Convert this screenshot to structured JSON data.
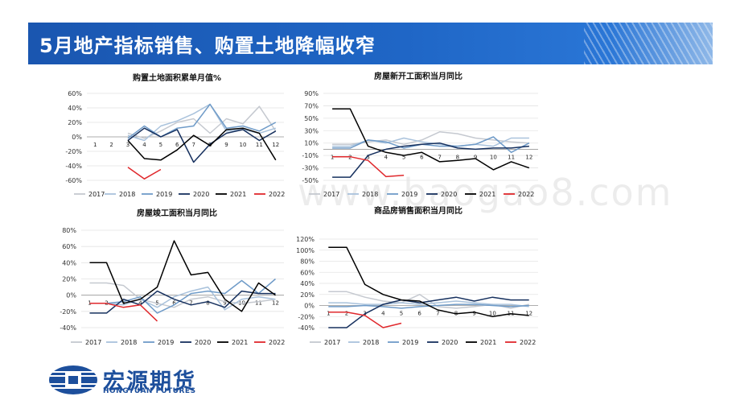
{
  "header": {
    "title": "5月地产指标销售、购置土地降幅收窄"
  },
  "watermark": "www.baogao8.com",
  "logo": {
    "cn": "宏源期货",
    "en": "HONGYUAN FUTURES"
  },
  "colors": {
    "banner": "#1f66c6",
    "s2017": "#c5c9d0",
    "s2018": "#a9c2dc",
    "s2019": "#6f9bc8",
    "s2020": "#16305e",
    "s2021": "#000000",
    "s2022": "#e0282c"
  },
  "chart_data": [
    {
      "type": "line",
      "title": "购置土地面积累单月值%",
      "categories": [
        "1",
        "2",
        "3",
        "4",
        "5",
        "6",
        "7",
        "8",
        "9",
        "10",
        "11",
        "12"
      ],
      "yticks": [
        "60%",
        "40%",
        "20%",
        "0%",
        "-20%",
        "-40%",
        "-60%"
      ],
      "ylim": [
        -60,
        60
      ],
      "legend_position": "bottom",
      "series": [
        {
          "name": "2017",
          "color": "#c5c9d0",
          "values": [
            null,
            null,
            5,
            -2,
            8,
            20,
            25,
            5,
            25,
            18,
            42,
            8
          ]
        },
        {
          "name": "2018",
          "color": "#a9c2dc",
          "values": [
            null,
            null,
            2,
            -5,
            15,
            22,
            32,
            45,
            8,
            10,
            5,
            12
          ]
        },
        {
          "name": "2019",
          "color": "#6f9bc8",
          "values": [
            null,
            null,
            -2,
            15,
            0,
            12,
            15,
            45,
            12,
            15,
            8,
            20
          ]
        },
        {
          "name": "2020",
          "color": "#16305e",
          "values": [
            null,
            null,
            -5,
            12,
            0,
            10,
            -35,
            -10,
            5,
            10,
            -5,
            8
          ]
        },
        {
          "name": "2021",
          "color": "#000000",
          "values": [
            null,
            null,
            -5,
            -30,
            -32,
            -18,
            2,
            -12,
            10,
            12,
            5,
            -32
          ]
        },
        {
          "name": "2022",
          "color": "#e0282c",
          "values": [
            null,
            null,
            -42,
            -58,
            -45,
            null,
            null,
            null,
            null,
            null,
            null,
            null
          ]
        }
      ]
    },
    {
      "type": "line",
      "title": "房屋新开工面积当月同比",
      "categories": [
        "1",
        "2",
        "3",
        "4",
        "5",
        "6",
        "7",
        "8",
        "9",
        "10",
        "11",
        "12"
      ],
      "yticks": [
        "90%",
        "70%",
        "50%",
        "30%",
        "10%",
        "-10%",
        "-30%",
        "-50%"
      ],
      "ylim": [
        -50,
        90
      ],
      "legend_position": "bottom",
      "series": [
        {
          "name": "2017",
          "color": "#c5c9d0",
          "values": [
            8,
            8,
            12,
            15,
            8,
            15,
            28,
            25,
            18,
            15,
            12,
            10
          ]
        },
        {
          "name": "2018",
          "color": "#a9c2dc",
          "values": [
            5,
            5,
            15,
            10,
            18,
            12,
            8,
            5,
            8,
            5,
            18,
            18
          ]
        },
        {
          "name": "2019",
          "color": "#6f9bc8",
          "values": [
            2,
            2,
            15,
            12,
            2,
            8,
            5,
            5,
            8,
            20,
            -5,
            10
          ]
        },
        {
          "name": "2020",
          "color": "#16305e",
          "values": [
            -45,
            -45,
            -10,
            0,
            5,
            8,
            10,
            2,
            0,
            2,
            2,
            5
          ]
        },
        {
          "name": "2021",
          "color": "#000000",
          "values": [
            65,
            65,
            5,
            -5,
            -10,
            -5,
            -20,
            -18,
            -15,
            -33,
            -20,
            -30
          ]
        },
        {
          "name": "2022",
          "color": "#e0282c",
          "values": [
            -12,
            -12,
            -18,
            -44,
            -42,
            null,
            null,
            null,
            null,
            null,
            null,
            null
          ]
        }
      ]
    },
    {
      "type": "line",
      "title": "房屋竣工面积当月同比",
      "categories": [
        "1",
        "2",
        "3",
        "4",
        "5",
        "6",
        "7",
        "8",
        "9",
        "10",
        "11",
        "12"
      ],
      "yticks": [
        "80%",
        "60%",
        "40%",
        "20%",
        "0%",
        "-20%",
        "-40%"
      ],
      "ylim": [
        -40,
        80
      ],
      "legend_position": "bottom",
      "series": [
        {
          "name": "2017",
          "color": "#c5c9d0",
          "values": [
            15,
            15,
            12,
            -5,
            -10,
            -15,
            -5,
            -2,
            -8,
            -10,
            -8,
            -5
          ]
        },
        {
          "name": "2018",
          "color": "#a9c2dc",
          "values": [
            -10,
            -10,
            -12,
            -5,
            -15,
            -2,
            5,
            10,
            -18,
            -5,
            -2,
            -5
          ]
        },
        {
          "name": "2019",
          "color": "#6f9bc8",
          "values": [
            -10,
            -10,
            -8,
            -2,
            -22,
            -12,
            2,
            5,
            2,
            18,
            2,
            20
          ]
        },
        {
          "name": "2020",
          "color": "#16305e",
          "values": [
            -22,
            -22,
            -5,
            -12,
            5,
            -5,
            -12,
            -8,
            -15,
            5,
            2,
            2
          ]
        },
        {
          "name": "2021",
          "color": "#000000",
          "values": [
            40,
            40,
            -10,
            -5,
            10,
            67,
            25,
            28,
            -5,
            -20,
            15,
            0
          ]
        },
        {
          "name": "2022",
          "color": "#e0282c",
          "values": [
            -10,
            -10,
            -15,
            -12,
            -32,
            null,
            null,
            null,
            null,
            null,
            null,
            null
          ]
        }
      ]
    },
    {
      "type": "line",
      "title": "商品房销售面积当月同比",
      "categories": [
        "1",
        "2",
        "3",
        "4",
        "5",
        "6",
        "7",
        "8",
        "9",
        "10",
        "11",
        "12"
      ],
      "yticks": [
        "120%",
        "100%",
        "80%",
        "60%",
        "40%",
        "20%",
        "0%",
        "-20%",
        "-40%"
      ],
      "ylim": [
        -40,
        120
      ],
      "legend_position": "bottom",
      "series": [
        {
          "name": "2017",
          "color": "#c5c9d0",
          "values": [
            25,
            25,
            15,
            8,
            5,
            20,
            -2,
            -5,
            -2,
            2,
            -5,
            2
          ]
        },
        {
          "name": "2018",
          "color": "#a9c2dc",
          "values": [
            5,
            5,
            2,
            2,
            5,
            2,
            5,
            8,
            5,
            2,
            2,
            -2
          ]
        },
        {
          "name": "2019",
          "color": "#6f9bc8",
          "values": [
            -2,
            -2,
            0,
            -2,
            -5,
            -2,
            0,
            2,
            2,
            0,
            -2,
            0
          ]
        },
        {
          "name": "2020",
          "color": "#16305e",
          "values": [
            -40,
            -40,
            -15,
            2,
            10,
            5,
            10,
            15,
            8,
            15,
            10,
            10
          ]
        },
        {
          "name": "2021",
          "color": "#000000",
          "values": [
            105,
            105,
            38,
            20,
            10,
            8,
            -8,
            -15,
            -12,
            -20,
            -15,
            -18
          ]
        },
        {
          "name": "2022",
          "color": "#e0282c",
          "values": [
            -12,
            -12,
            -18,
            -40,
            -32,
            null,
            null,
            null,
            null,
            null,
            null,
            null
          ]
        }
      ]
    }
  ]
}
